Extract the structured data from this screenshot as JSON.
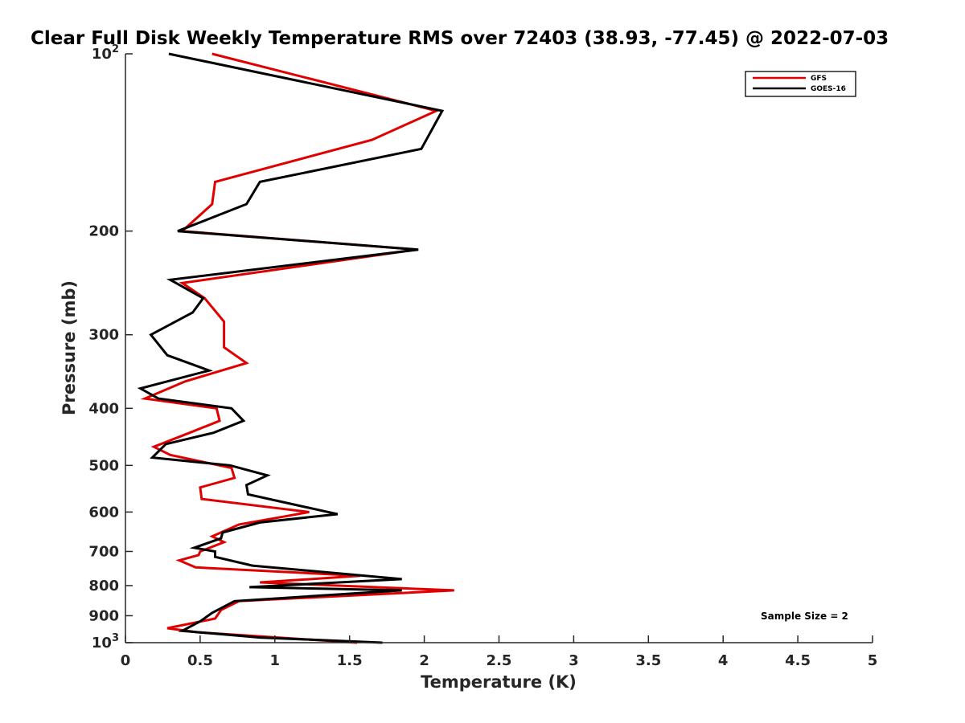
{
  "chart_data": {
    "type": "line",
    "title": "Clear Full Disk Weekly Temperature RMS over 72403 (38.93, -77.45) @ 2022-07-03",
    "xlabel": "Temperature (K)",
    "ylabel": "Pressure (mb)",
    "xlim": [
      0,
      5
    ],
    "ylim": [
      100,
      1000
    ],
    "y_scale": "log",
    "y_reversed": true,
    "grid": false,
    "x_ticks": [
      0,
      0.5,
      1,
      1.5,
      2,
      2.5,
      3,
      3.5,
      4,
      4.5,
      5
    ],
    "x_tick_labels": [
      "0",
      "0.5",
      "1",
      "1.5",
      "2",
      "2.5",
      "3",
      "3.5",
      "4",
      "4.5",
      "5"
    ],
    "y_ticks": [
      100,
      200,
      300,
      400,
      500,
      600,
      700,
      800,
      900,
      1000
    ],
    "y_tick_labels": [
      {
        "base": "10",
        "exp": "2"
      },
      {
        "base": "200",
        "exp": ""
      },
      {
        "base": "300",
        "exp": ""
      },
      {
        "base": "400",
        "exp": ""
      },
      {
        "base": "500",
        "exp": ""
      },
      {
        "base": "600",
        "exp": ""
      },
      {
        "base": "700",
        "exp": ""
      },
      {
        "base": "800",
        "exp": ""
      },
      {
        "base": "900",
        "exp": ""
      },
      {
        "base": "10",
        "exp": "3"
      }
    ],
    "legend_position": "top-right",
    "series": [
      {
        "name": "GFS",
        "color": "#e00000",
        "points": [
          {
            "x": 0.58,
            "p": 100
          },
          {
            "x": 2.08,
            "p": 125
          },
          {
            "x": 1.65,
            "p": 140
          },
          {
            "x": 0.6,
            "p": 165
          },
          {
            "x": 0.58,
            "p": 180
          },
          {
            "x": 0.38,
            "p": 200
          },
          {
            "x": 1.95,
            "p": 215
          },
          {
            "x": 0.38,
            "p": 245
          },
          {
            "x": 0.53,
            "p": 260
          },
          {
            "x": 0.66,
            "p": 285
          },
          {
            "x": 0.66,
            "p": 315
          },
          {
            "x": 0.81,
            "p": 335
          },
          {
            "x": 0.4,
            "p": 360
          },
          {
            "x": 0.13,
            "p": 385
          },
          {
            "x": 0.61,
            "p": 400
          },
          {
            "x": 0.63,
            "p": 420
          },
          {
            "x": 0.43,
            "p": 440
          },
          {
            "x": 0.19,
            "p": 465
          },
          {
            "x": 0.3,
            "p": 480
          },
          {
            "x": 0.71,
            "p": 505
          },
          {
            "x": 0.73,
            "p": 525
          },
          {
            "x": 0.5,
            "p": 545
          },
          {
            "x": 0.51,
            "p": 570
          },
          {
            "x": 1.23,
            "p": 600
          },
          {
            "x": 0.76,
            "p": 630
          },
          {
            "x": 0.58,
            "p": 660
          },
          {
            "x": 0.66,
            "p": 675
          },
          {
            "x": 0.5,
            "p": 700
          },
          {
            "x": 0.49,
            "p": 710
          },
          {
            "x": 0.36,
            "p": 725
          },
          {
            "x": 0.47,
            "p": 745
          },
          {
            "x": 1.57,
            "p": 770
          },
          {
            "x": 0.9,
            "p": 790
          },
          {
            "x": 2.2,
            "p": 815
          },
          {
            "x": 0.76,
            "p": 850
          },
          {
            "x": 0.64,
            "p": 880
          },
          {
            "x": 0.6,
            "p": 910
          },
          {
            "x": 0.28,
            "p": 945
          },
          {
            "x": 0.48,
            "p": 960
          },
          {
            "x": 1.55,
            "p": 1000
          }
        ]
      },
      {
        "name": "GOES-16",
        "color": "#000000",
        "points": [
          {
            "x": 0.29,
            "p": 100
          },
          {
            "x": 2.12,
            "p": 125
          },
          {
            "x": 1.98,
            "p": 145
          },
          {
            "x": 0.9,
            "p": 165
          },
          {
            "x": 0.81,
            "p": 180
          },
          {
            "x": 0.35,
            "p": 200
          },
          {
            "x": 1.96,
            "p": 215
          },
          {
            "x": 0.3,
            "p": 242
          },
          {
            "x": 0.52,
            "p": 260
          },
          {
            "x": 0.45,
            "p": 275
          },
          {
            "x": 0.17,
            "p": 300
          },
          {
            "x": 0.28,
            "p": 325
          },
          {
            "x": 0.56,
            "p": 345
          },
          {
            "x": 0.1,
            "p": 370
          },
          {
            "x": 0.22,
            "p": 385
          },
          {
            "x": 0.71,
            "p": 400
          },
          {
            "x": 0.79,
            "p": 420
          },
          {
            "x": 0.59,
            "p": 440
          },
          {
            "x": 0.27,
            "p": 460
          },
          {
            "x": 0.18,
            "p": 485
          },
          {
            "x": 0.7,
            "p": 500
          },
          {
            "x": 0.95,
            "p": 520
          },
          {
            "x": 0.81,
            "p": 540
          },
          {
            "x": 0.82,
            "p": 560
          },
          {
            "x": 1.42,
            "p": 605
          },
          {
            "x": 0.9,
            "p": 625
          },
          {
            "x": 0.65,
            "p": 650
          },
          {
            "x": 0.64,
            "p": 665
          },
          {
            "x": 0.46,
            "p": 690
          },
          {
            "x": 0.6,
            "p": 700
          },
          {
            "x": 0.6,
            "p": 715
          },
          {
            "x": 0.85,
            "p": 740
          },
          {
            "x": 1.85,
            "p": 780
          },
          {
            "x": 0.83,
            "p": 805
          },
          {
            "x": 1.85,
            "p": 815
          },
          {
            "x": 0.73,
            "p": 850
          },
          {
            "x": 0.58,
            "p": 890
          },
          {
            "x": 0.5,
            "p": 920
          },
          {
            "x": 0.38,
            "p": 955
          },
          {
            "x": 0.9,
            "p": 980
          },
          {
            "x": 1.72,
            "p": 1000
          }
        ]
      }
    ],
    "annotation": "Sample Size = 2"
  }
}
